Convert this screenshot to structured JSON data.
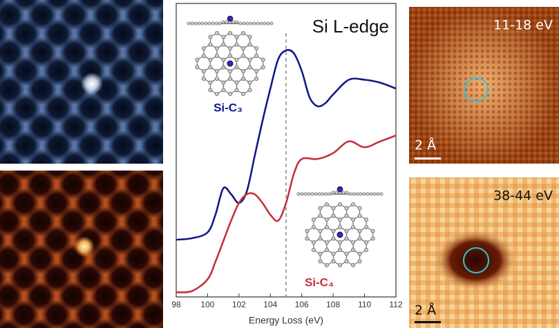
{
  "chart_data": {
    "type": "line",
    "title": "Si L-edge",
    "x_label": "Energy Loss (eV)",
    "xlim": [
      98,
      112
    ],
    "xticks": [
      98,
      100,
      102,
      104,
      106,
      108,
      110,
      112
    ],
    "ylim": [
      0,
      1
    ],
    "vline": 105,
    "series": [
      {
        "name": "Si-C₃",
        "color": "#15178a",
        "x": [
          98,
          99,
          100,
          100.5,
          101,
          101.5,
          102,
          102.5,
          103,
          103.5,
          104,
          104.5,
          105,
          105.5,
          106,
          106.5,
          107,
          107.5,
          108,
          109,
          110,
          111,
          112
        ],
        "values": [
          0.195,
          0.2,
          0.22,
          0.28,
          0.37,
          0.35,
          0.32,
          0.36,
          0.48,
          0.6,
          0.71,
          0.81,
          0.84,
          0.83,
          0.77,
          0.68,
          0.65,
          0.66,
          0.69,
          0.74,
          0.74,
          0.73,
          0.71
        ]
      },
      {
        "name": "Si-C₄",
        "color": "#c4313f",
        "x": [
          98,
          99,
          100,
          100.5,
          101,
          101.5,
          102,
          102.5,
          103,
          103.5,
          104,
          104.5,
          105,
          105.5,
          106,
          107,
          108,
          109,
          110,
          111,
          112
        ],
        "values": [
          0.016,
          0.02,
          0.06,
          0.12,
          0.19,
          0.26,
          0.32,
          0.35,
          0.35,
          0.32,
          0.28,
          0.26,
          0.32,
          0.42,
          0.47,
          0.47,
          0.49,
          0.53,
          0.51,
          0.53,
          0.55
        ]
      }
    ]
  },
  "panels": [
    {
      "label": "11-18 eV",
      "scale_bar": "2 Å"
    },
    {
      "label": "38-44 eV",
      "scale_bar": "2 Å"
    }
  ]
}
